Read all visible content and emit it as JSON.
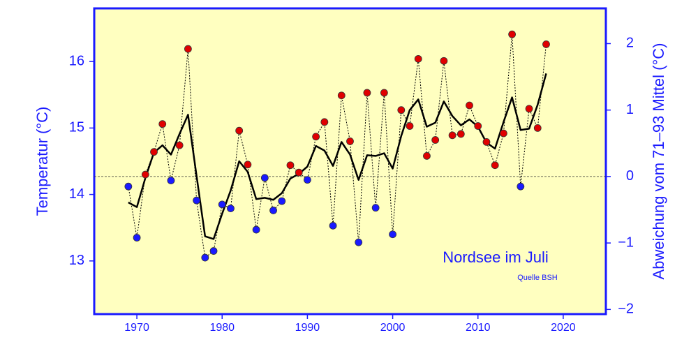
{
  "chart_data": {
    "type": "line",
    "title": "Nordsee im Juli",
    "subtitle": "Quelle BSH",
    "y_label": "Temperatur (°C)",
    "y2_label": "Abweichung vom 71–93 Mittel (°C)",
    "x": [
      1969,
      1970,
      1971,
      1972,
      1973,
      1974,
      1975,
      1976,
      1977,
      1978,
      1979,
      1980,
      1981,
      1982,
      1983,
      1984,
      1985,
      1986,
      1987,
      1988,
      1989,
      1990,
      1991,
      1992,
      1993,
      1994,
      1995,
      1996,
      1997,
      1998,
      1999,
      2000,
      2001,
      2002,
      2003,
      2004,
      2005,
      2006,
      2007,
      2008,
      2009,
      2010,
      2011,
      2012,
      2013,
      2014,
      2015,
      2016,
      2017,
      2018
    ],
    "series": [
      {
        "color": "#000000",
        "marker_colors": [
          "#e00000",
          "#1a1aff"
        ],
        "values": [
          14.12,
          13.35,
          14.3,
          14.64,
          15.06,
          14.21,
          14.74,
          16.19,
          13.91,
          13.05,
          13.15,
          13.85,
          13.79,
          14.96,
          14.45,
          13.47,
          14.25,
          13.76,
          13.9,
          14.44,
          14.33,
          14.22,
          14.87,
          15.09,
          13.53,
          15.49,
          14.8,
          13.28,
          15.53,
          13.8,
          15.53,
          13.4,
          15.27,
          15.03,
          16.04,
          14.58,
          14.82,
          16.01,
          14.89,
          14.91,
          15.34,
          15.03,
          14.79,
          14.44,
          14.92,
          16.41,
          14.12,
          15.29,
          15.0,
          16.26
        ]
      },
      {
        "color": "#000000",
        "values": [
          13.88,
          13.81,
          14.25,
          14.63,
          14.74,
          14.6,
          14.91,
          15.2,
          14.28,
          13.37,
          13.33,
          13.71,
          14.06,
          14.5,
          14.34,
          13.93,
          13.95,
          13.92,
          14.02,
          14.24,
          14.31,
          14.42,
          14.73,
          14.66,
          14.43,
          14.79,
          14.6,
          14.22,
          14.59,
          14.58,
          14.62,
          14.39,
          14.88,
          15.27,
          15.43,
          15.02,
          15.08,
          15.4,
          15.18,
          15.04,
          15.13,
          15.02,
          14.78,
          14.69,
          15.09,
          15.46,
          14.97,
          14.99,
          15.35,
          15.82
        ]
      }
    ],
    "baseline": 14.27,
    "xlim": [
      1965,
      2025
    ],
    "xticks": [
      1970,
      1980,
      1990,
      2000,
      2010,
      2020
    ],
    "ylim": [
      12.2,
      16.8
    ],
    "yticks": [
      13,
      14,
      15,
      16
    ],
    "y2lim": [
      -2.07,
      2.53
    ],
    "y2ticks": [
      2,
      1,
      0,
      {
        "value": -1,
        "label": "−1"
      },
      {
        "value": -2,
        "label": "−2"
      }
    ],
    "axis_color": "#1a1aff",
    "background": "#ffffc0"
  }
}
